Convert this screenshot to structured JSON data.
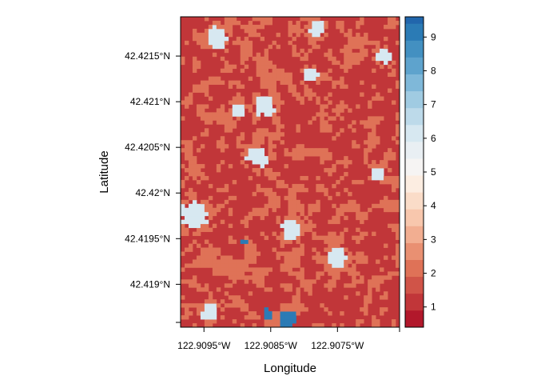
{
  "chart_data": {
    "type": "heatmap",
    "title": "",
    "xlabel": "Longitude",
    "ylabel": "Latitude",
    "x_ticks": [
      {
        "value": -122.9095,
        "label": "122.9095°W"
      },
      {
        "value": -122.9085,
        "label": "122.9085°W"
      },
      {
        "value": -122.9075,
        "label": "122.9075°W"
      }
    ],
    "y_ticks": [
      {
        "value": 42.4215,
        "label": "42.4215°N"
      },
      {
        "value": 42.421,
        "label": "42.421°N"
      },
      {
        "value": 42.4205,
        "label": "42.4205°N"
      },
      {
        "value": 42.42,
        "label": "42.42°N"
      },
      {
        "value": 42.4195,
        "label": "42.4195°N"
      },
      {
        "value": 42.419,
        "label": "42.419°N"
      }
    ],
    "xlim": [
      -122.90985,
      -122.90657
    ],
    "ylim": [
      42.41853,
      42.42193
    ],
    "colorbar": {
      "range": [
        0.4,
        9.6
      ],
      "breaks": [
        0.4,
        0.9,
        1.4,
        1.9,
        2.4,
        2.9,
        3.4,
        3.9,
        4.4,
        4.9,
        5.4,
        5.9,
        6.4,
        6.9,
        7.4,
        7.9,
        8.4,
        8.9,
        9.4,
        9.6
      ],
      "colors": [
        "#b2182b",
        "#c13639",
        "#d05448",
        "#df7257",
        "#e99072",
        "#f2ae91",
        "#f8c7ad",
        "#fadcc8",
        "#fcede1",
        "#f6f4f3",
        "#e9eff3",
        "#d7e8f1",
        "#bddaea",
        "#a0cbe2",
        "#7fb8d9",
        "#5ea3cd",
        "#4390c1",
        "#2b7bb5",
        "#2166ac"
      ],
      "ticks": [
        {
          "value": 1,
          "label": "1"
        },
        {
          "value": 2,
          "label": "2"
        },
        {
          "value": 3,
          "label": "3"
        },
        {
          "value": 4,
          "label": "4"
        },
        {
          "value": 5,
          "label": "5"
        },
        {
          "value": 6,
          "label": "6"
        },
        {
          "value": 7,
          "label": "7"
        },
        {
          "value": 8,
          "label": "8"
        },
        {
          "value": 9,
          "label": "9"
        }
      ]
    },
    "raster": {
      "grid": [
        55,
        78
      ],
      "dominant_value": 1,
      "secondary_value": 2,
      "light_value": 6,
      "light_patches": [
        {
          "lon": -122.9093,
          "lat": 42.4217,
          "r": 0.00012
        },
        {
          "lon": -122.9086,
          "lat": 42.42095,
          "r": 0.00011
        },
        {
          "lon": -122.9087,
          "lat": 42.4204,
          "r": 0.00012
        },
        {
          "lon": -122.90965,
          "lat": 42.41975,
          "r": 0.00016
        },
        {
          "lon": -122.9082,
          "lat": 42.4196,
          "r": 0.00011
        },
        {
          "lon": -122.9075,
          "lat": 42.4193,
          "r": 0.00011
        },
        {
          "lon": -122.9094,
          "lat": 42.4187,
          "r": 0.0001
        },
        {
          "lon": -122.9078,
          "lat": 42.4218,
          "r": 9e-05
        },
        {
          "lon": -122.9069,
          "lat": 42.4202,
          "r": 9e-05
        },
        {
          "lon": -122.909,
          "lat": 42.4209,
          "r": 8e-05
        },
        {
          "lon": -122.9079,
          "lat": 42.4213,
          "r": 9e-05
        },
        {
          "lon": -122.9068,
          "lat": 42.4215,
          "r": 9e-05
        }
      ],
      "high_value": 9,
      "high_patches": [
        {
          "lon": -122.90825,
          "lat": 42.41862,
          "r": 9e-05
        },
        {
          "lon": -122.90854,
          "lat": 42.41868,
          "r": 5e-05
        },
        {
          "lon": -122.9089,
          "lat": 42.41947,
          "r": 3e-05
        }
      ]
    }
  }
}
